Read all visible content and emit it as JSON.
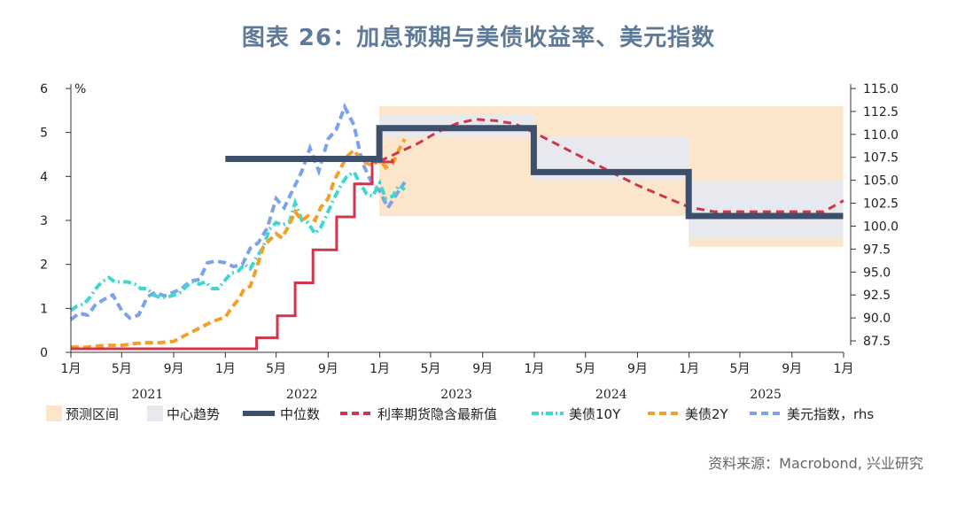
{
  "title": "图表 26：加息预期与美债收益率、美元指数",
  "source": "资料来源：Macrobond, 兴业研究",
  "chart_data": {
    "type": "line",
    "left_axis": {
      "unit": "%",
      "min": 0,
      "max": 6,
      "ticks": [
        0,
        1,
        2,
        3,
        4,
        5,
        6
      ]
    },
    "right_axis": {
      "min": 86.25,
      "max": 115.0,
      "ticks": [
        "87.5",
        "90.0",
        "92.5",
        "95.0",
        "97.5",
        "100.0",
        "102.5",
        "105.0",
        "107.5",
        "110.0",
        "112.5",
        "115.0"
      ]
    },
    "x_axis": {
      "start": "2021-01",
      "end": "2026-01",
      "month_ticks": [
        "1月",
        "5月",
        "9月",
        "1月",
        "5月",
        "9月",
        "1月",
        "5月",
        "9月",
        "1月",
        "5月",
        "9月",
        "1月",
        "5月",
        "9月",
        "1月"
      ],
      "years": [
        "2021",
        "2022",
        "2023",
        "2024",
        "2025"
      ]
    },
    "colors": {
      "forecast_band": "#fbe6cc",
      "trend_band": "#e7e9ee",
      "median": "#3d4f6b",
      "futures": "#d0364b",
      "us10y": "#3fd8cf",
      "us2y": "#f2a02a",
      "dxy": "#7ea2e8"
    },
    "legend": [
      {
        "label": "预测区间",
        "kind": "swatch",
        "color": "#fbe6cc"
      },
      {
        "label": "中心趋势",
        "kind": "swatch",
        "color": "#e7e9ee"
      },
      {
        "label": "中位数",
        "kind": "thick",
        "color": "#3d4f6b"
      },
      {
        "label": "利率期货隐含最新值",
        "kind": "dash",
        "color": "#d0364b"
      },
      {
        "label": "美债10Y",
        "kind": "dashdot",
        "color": "#3fd8cf"
      },
      {
        "label": "美债2Y",
        "kind": "dash",
        "color": "#f2a02a"
      },
      {
        "label": "美元指数，rhs",
        "kind": "dash",
        "color": "#7ea2e8"
      }
    ],
    "forecast_range": [
      {
        "from": "2022-12-31",
        "to": "2023-12-31",
        "low": 3.1,
        "high": 5.6
      },
      {
        "from": "2023-12-31",
        "to": "2024-12-31",
        "low": 3.1,
        "high": 5.6
      },
      {
        "from": "2024-12-31",
        "to": "2025-12-31",
        "low": 2.4,
        "high": 5.6
      }
    ],
    "central_tendency": [
      {
        "from": "2022-12-31",
        "to": "2023-12-31",
        "low": 4.9,
        "high": 5.4
      },
      {
        "from": "2023-12-31",
        "to": "2024-12-31",
        "low": 3.9,
        "high": 4.9
      },
      {
        "from": "2024-12-31",
        "to": "2025-12-31",
        "low": 2.6,
        "high": 3.9
      }
    ],
    "median": [
      {
        "from": "2022-01-01",
        "to": "2022-12-31",
        "value": 4.4
      },
      {
        "from": "2022-12-31",
        "to": "2023-12-31",
        "value": 5.1
      },
      {
        "from": "2023-12-31",
        "to": "2024-12-31",
        "value": 4.1
      },
      {
        "from": "2024-12-31",
        "to": "2025-12-31",
        "value": 3.1
      }
    ],
    "futures_implied": {
      "x": [
        "2023-01-01",
        "2023-02-15",
        "2023-04-01",
        "2023-05-15",
        "2023-07-01",
        "2023-08-15",
        "2023-10-01",
        "2023-11-15",
        "2024-01-01",
        "2024-03-01",
        "2024-05-01",
        "2024-07-01",
        "2024-09-01",
        "2024-11-01",
        "2025-01-01",
        "2025-03-01",
        "2025-06-01",
        "2025-09-01",
        "2025-11-15",
        "2026-01-01"
      ],
      "y": [
        4.35,
        4.55,
        4.75,
        5.0,
        5.2,
        5.3,
        5.27,
        5.2,
        5.0,
        4.7,
        4.4,
        4.1,
        3.8,
        3.55,
        3.3,
        3.2,
        3.2,
        3.2,
        3.2,
        3.45
      ]
    },
    "fed_funds_upper": {
      "x": [
        "2021-01-01",
        "2022-03-16",
        "2022-05-04",
        "2022-06-15",
        "2022-07-27",
        "2022-09-21",
        "2022-11-02",
        "2022-12-14",
        "2023-01-31"
      ],
      "y": [
        0.08,
        0.33,
        0.83,
        1.58,
        2.33,
        3.08,
        3.83,
        4.33,
        4.4
      ]
    },
    "us10y": {
      "x": [
        "2021-01-01",
        "2021-01-15",
        "2021-02-01",
        "2021-02-15",
        "2021-03-01",
        "2021-03-15",
        "2021-04-01",
        "2021-04-15",
        "2021-05-01",
        "2021-05-15",
        "2021-06-01",
        "2021-06-15",
        "2021-07-01",
        "2021-07-15",
        "2021-08-01",
        "2021-08-15",
        "2021-09-01",
        "2021-09-15",
        "2021-10-01",
        "2021-10-15",
        "2021-11-01",
        "2021-11-15",
        "2021-12-01",
        "2021-12-15",
        "2022-01-01",
        "2022-01-15",
        "2022-02-01",
        "2022-02-15",
        "2022-03-01",
        "2022-03-15",
        "2022-04-01",
        "2022-04-15",
        "2022-05-01",
        "2022-05-15",
        "2022-06-01",
        "2022-06-15",
        "2022-07-01",
        "2022-07-15",
        "2022-08-01",
        "2022-08-15",
        "2022-09-01",
        "2022-09-15",
        "2022-10-01",
        "2022-10-15",
        "2022-11-01",
        "2022-11-15",
        "2022-12-01",
        "2022-12-15",
        "2023-01-01",
        "2023-01-15",
        "2023-02-01",
        "2023-02-15",
        "2023-03-01"
      ],
      "y": [
        0.95,
        1.05,
        1.1,
        1.25,
        1.45,
        1.6,
        1.7,
        1.6,
        1.6,
        1.6,
        1.55,
        1.45,
        1.45,
        1.3,
        1.25,
        1.25,
        1.3,
        1.35,
        1.5,
        1.6,
        1.55,
        1.6,
        1.45,
        1.45,
        1.65,
        1.8,
        1.85,
        2.0,
        1.9,
        2.15,
        2.4,
        2.8,
        2.95,
        2.9,
        2.95,
        3.4,
        3.0,
        2.95,
        2.7,
        2.85,
        3.2,
        3.5,
        3.8,
        4.0,
        4.1,
        3.85,
        3.6,
        3.55,
        3.85,
        3.5,
        3.55,
        3.8,
        3.7
      ]
    },
    "us2y": {
      "x": [
        "2021-01-01",
        "2021-02-01",
        "2021-03-01",
        "2021-04-01",
        "2021-05-01",
        "2021-06-01",
        "2021-07-01",
        "2021-08-01",
        "2021-09-01",
        "2021-10-01",
        "2021-11-01",
        "2021-12-01",
        "2022-01-01",
        "2022-01-15",
        "2022-02-01",
        "2022-02-15",
        "2022-03-01",
        "2022-03-15",
        "2022-04-01",
        "2022-04-15",
        "2022-05-01",
        "2022-05-15",
        "2022-06-01",
        "2022-06-15",
        "2022-07-01",
        "2022-07-15",
        "2022-08-01",
        "2022-08-15",
        "2022-09-01",
        "2022-09-15",
        "2022-10-01",
        "2022-10-15",
        "2022-11-01",
        "2022-11-15",
        "2022-12-01",
        "2022-12-15",
        "2023-01-01",
        "2023-01-15",
        "2023-02-01",
        "2023-02-15",
        "2023-03-01"
      ],
      "y": [
        0.12,
        0.11,
        0.14,
        0.16,
        0.16,
        0.2,
        0.22,
        0.22,
        0.25,
        0.4,
        0.55,
        0.7,
        0.8,
        1.0,
        1.2,
        1.45,
        1.5,
        1.9,
        2.4,
        2.55,
        2.7,
        2.6,
        2.9,
        3.2,
        3.0,
        3.1,
        3.0,
        3.3,
        3.5,
        3.9,
        4.2,
        4.45,
        4.6,
        4.4,
        4.3,
        4.25,
        4.4,
        4.2,
        4.3,
        4.6,
        4.85
      ]
    },
    "dxy": {
      "x": [
        "2021-01-01",
        "2021-01-20",
        "2021-02-10",
        "2021-03-01",
        "2021-03-20",
        "2021-04-10",
        "2021-05-01",
        "2021-05-20",
        "2021-06-10",
        "2021-07-01",
        "2021-07-20",
        "2021-08-10",
        "2021-09-01",
        "2021-09-20",
        "2021-10-10",
        "2021-11-01",
        "2021-11-20",
        "2021-12-10",
        "2022-01-01",
        "2022-01-20",
        "2022-02-10",
        "2022-03-01",
        "2022-03-20",
        "2022-04-10",
        "2022-05-01",
        "2022-05-20",
        "2022-06-10",
        "2022-07-01",
        "2022-07-20",
        "2022-08-10",
        "2022-09-01",
        "2022-09-20",
        "2022-10-10",
        "2022-11-01",
        "2022-11-20",
        "2022-12-10",
        "2023-01-01",
        "2023-01-20",
        "2023-02-10",
        "2023-03-01"
      ],
      "y": [
        89.8,
        90.5,
        90.3,
        91.5,
        92.0,
        92.5,
        90.8,
        90.0,
        90.3,
        92.3,
        92.8,
        92.4,
        92.8,
        93.2,
        94.0,
        94.2,
        96.0,
        96.2,
        96.0,
        95.6,
        95.8,
        97.6,
        98.2,
        99.8,
        103.0,
        102.0,
        104.0,
        106.0,
        108.5,
        106.0,
        109.5,
        110.5,
        113.0,
        111.0,
        107.0,
        105.0,
        103.8,
        102.0,
        103.5,
        104.8
      ]
    }
  }
}
